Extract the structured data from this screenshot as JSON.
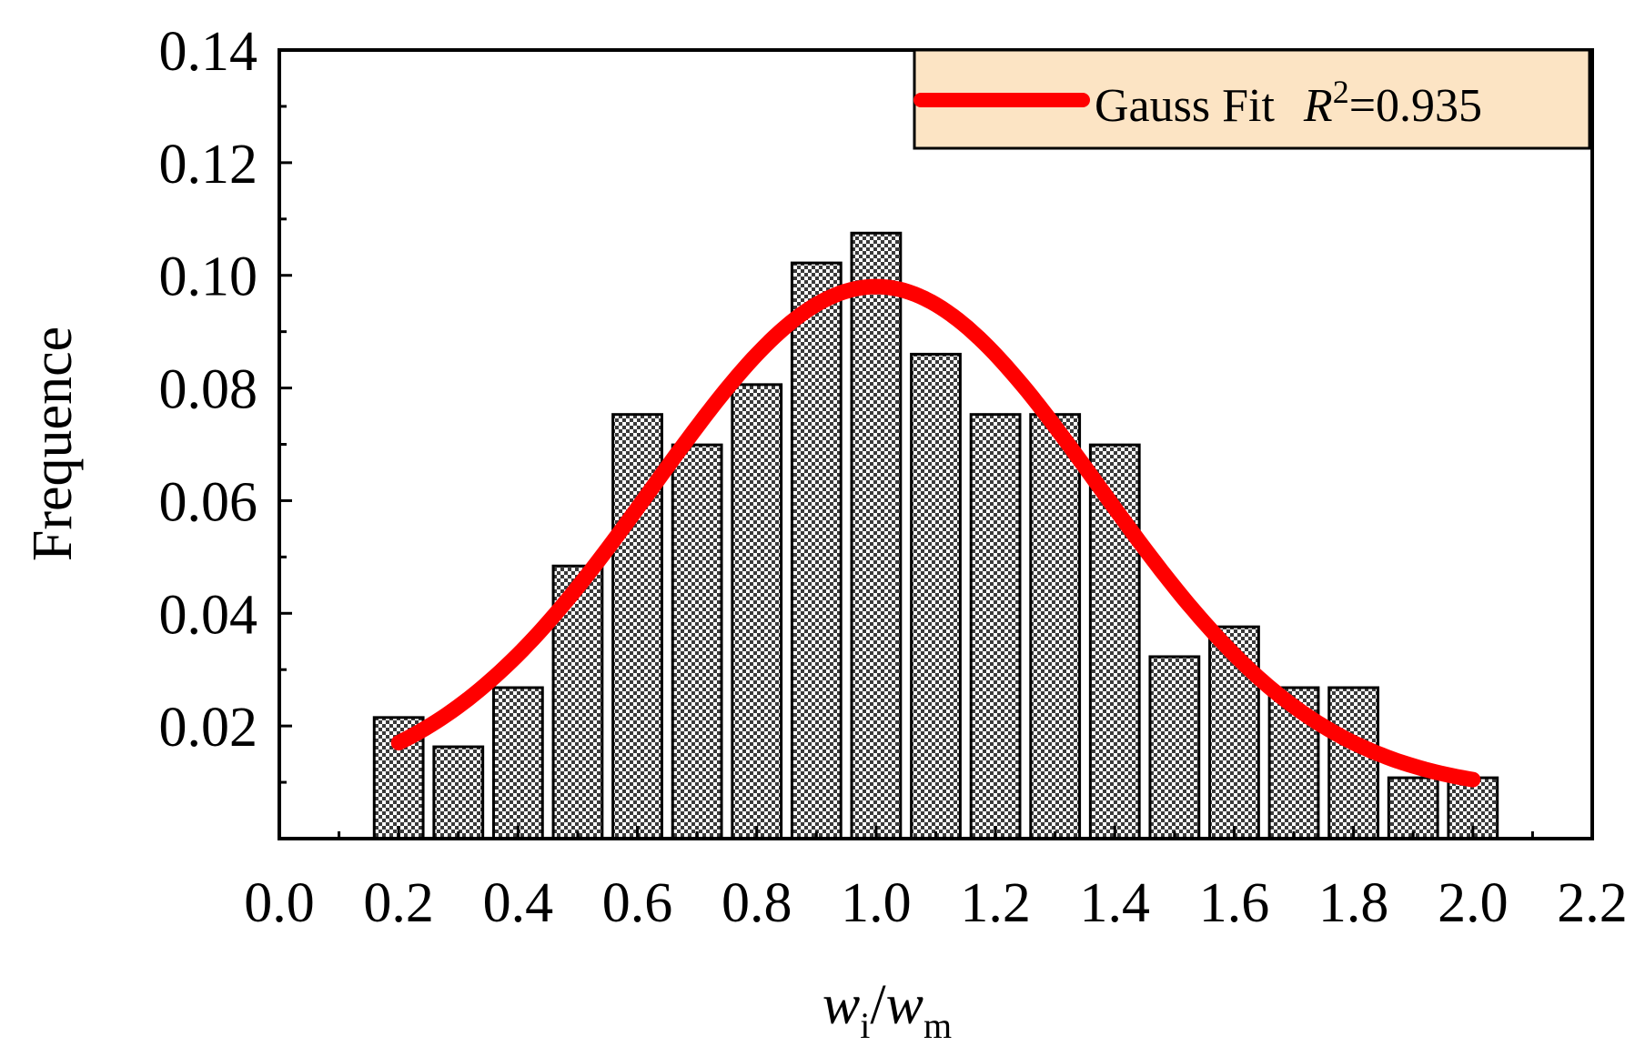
{
  "chart_data": {
    "type": "bar",
    "title": "",
    "xlabel_main": "w",
    "xlabel_main_sub": "i",
    "xlabel_slash": "/",
    "xlabel_den": "w",
    "xlabel_den_sub": "m",
    "ylabel": "Frequence",
    "xlim": [
      0.0,
      2.2
    ],
    "ylim": [
      0.0,
      0.14
    ],
    "x_ticks": [
      "0.0",
      "0.2",
      "0.4",
      "0.6",
      "0.8",
      "1.0",
      "1.2",
      "1.4",
      "1.6",
      "1.8",
      "2.0",
      "2.2"
    ],
    "y_ticks": [
      "0.02",
      "0.04",
      "0.06",
      "0.08",
      "0.10",
      "0.12",
      "0.14"
    ],
    "bin_width": 0.1,
    "bins": [
      0.2,
      0.3,
      0.4,
      0.5,
      0.6,
      0.7,
      0.8,
      0.9,
      1.0,
      1.1,
      1.2,
      1.3,
      1.4,
      1.5,
      1.6,
      1.7,
      1.8,
      1.9,
      2.0
    ],
    "values": [
      0.0215,
      0.0163,
      0.0268,
      0.0484,
      0.0753,
      0.0699,
      0.0806,
      0.1022,
      0.1075,
      0.086,
      0.0753,
      0.0753,
      0.0699,
      0.0323,
      0.0376,
      0.0268,
      0.0268,
      0.0108,
      0.0108
    ],
    "bar_color": "#9a9a9a",
    "fit": {
      "name": "Gauss Fit",
      "r2_symbol": "R",
      "r2_exponent": "2",
      "r2_value": "=0.935",
      "y0": 0.008,
      "xc": 1.0,
      "sigma": 0.373,
      "amplitude": 0.09,
      "x_range": [
        0.2,
        2.0
      ],
      "color": "#ff0000"
    },
    "legend_position": "top-right",
    "legend_bg": "#fce4c4"
  }
}
